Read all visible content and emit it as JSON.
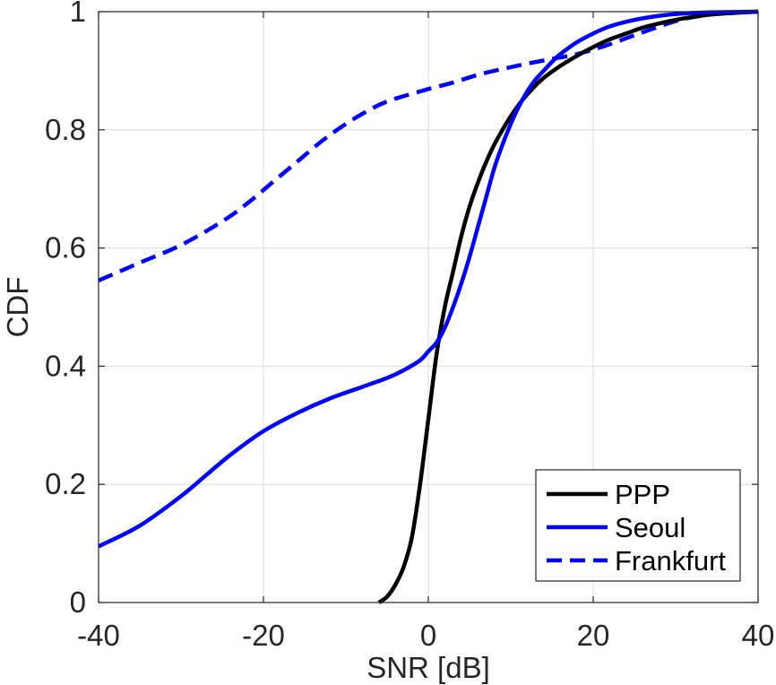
{
  "chart_data": {
    "type": "line",
    "title": "",
    "xlabel": "SNR [dB]",
    "ylabel": "CDF",
    "xlim": [
      -40,
      40
    ],
    "ylim": [
      0,
      1
    ],
    "grid": true,
    "legend_position": "bottom-right",
    "x_ticks": [
      -40,
      -20,
      0,
      20,
      40
    ],
    "x_tick_labels": [
      "-40",
      "-20",
      "0",
      "20",
      "40"
    ],
    "y_ticks": [
      0,
      0.2,
      0.4,
      0.6,
      0.8,
      1
    ],
    "y_tick_labels": [
      "0",
      "0.2",
      "0.4",
      "0.6",
      "0.8",
      "1"
    ],
    "series": [
      {
        "name": "PPP",
        "color": "#000000",
        "dash": "solid",
        "x": [
          -6,
          -5,
          -4,
          -3,
          -2,
          -1,
          0,
          1,
          2,
          3,
          4,
          5,
          6,
          7,
          8,
          9,
          10,
          11,
          12,
          13,
          14,
          16,
          18,
          20,
          22,
          24,
          26,
          28,
          30,
          32,
          35,
          40
        ],
        "y": [
          0,
          0.01,
          0.03,
          0.06,
          0.11,
          0.2,
          0.31,
          0.42,
          0.5,
          0.56,
          0.62,
          0.67,
          0.71,
          0.745,
          0.775,
          0.8,
          0.823,
          0.843,
          0.86,
          0.875,
          0.888,
          0.908,
          0.925,
          0.94,
          0.953,
          0.963,
          0.973,
          0.98,
          0.986,
          0.991,
          0.996,
          1.0
        ]
      },
      {
        "name": "Seoul",
        "color": "#0000FF",
        "dash": "solid",
        "x": [
          -40,
          -35,
          -30,
          -27,
          -24,
          -20,
          -16,
          -12,
          -8,
          -5,
          -3,
          -1,
          0,
          1,
          2,
          3,
          4,
          5,
          6,
          7,
          8,
          9,
          10,
          11,
          12,
          13,
          14,
          15,
          16,
          18,
          20,
          22,
          25,
          28,
          31,
          35,
          40
        ],
        "y": [
          0.095,
          0.13,
          0.18,
          0.215,
          0.25,
          0.29,
          0.32,
          0.345,
          0.365,
          0.38,
          0.393,
          0.41,
          0.425,
          0.44,
          0.465,
          0.5,
          0.54,
          0.585,
          0.635,
          0.685,
          0.735,
          0.775,
          0.81,
          0.84,
          0.865,
          0.885,
          0.9,
          0.915,
          0.928,
          0.948,
          0.963,
          0.975,
          0.986,
          0.993,
          0.997,
          0.999,
          1.0
        ]
      },
      {
        "name": "Frankfurt",
        "color": "#0000FF",
        "dash": "dashed",
        "x": [
          -40,
          -35,
          -30,
          -25,
          -22,
          -19,
          -16,
          -13,
          -10,
          -7,
          -5,
          -3,
          -1,
          0,
          3,
          6,
          9,
          12,
          15,
          18,
          21,
          24,
          27,
          30,
          33,
          36,
          40
        ],
        "y": [
          0.545,
          0.575,
          0.605,
          0.645,
          0.675,
          0.71,
          0.745,
          0.78,
          0.81,
          0.835,
          0.848,
          0.857,
          0.865,
          0.869,
          0.88,
          0.893,
          0.903,
          0.912,
          0.92,
          0.928,
          0.94,
          0.955,
          0.97,
          0.984,
          0.993,
          0.998,
          1.0
        ]
      }
    ]
  }
}
